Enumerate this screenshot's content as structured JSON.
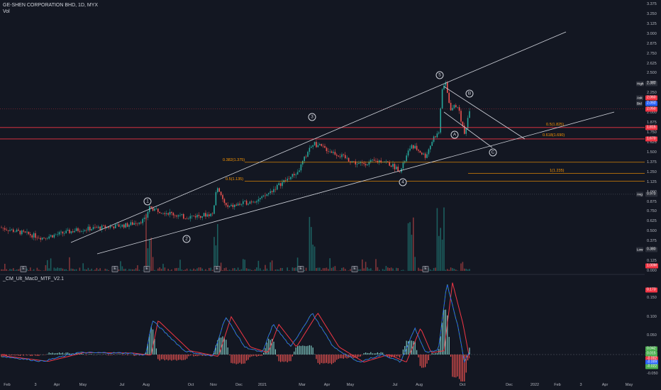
{
  "header": {
    "title": "GE-SHEN CORPORATION BHD, 1D, MYX",
    "volume_label": "Vol"
  },
  "indicator": {
    "title": "_CM_Ult_MacD_MTF_V2.1"
  },
  "price_axis": {
    "ticks": [
      "3.375",
      "3.250",
      "3.125",
      "3.000",
      "2.875",
      "2.750",
      "2.625",
      "2.500",
      "2.375",
      "2.250",
      "2.125",
      "2.000",
      "1.875",
      "1.750",
      "1.625",
      "1.500",
      "1.375",
      "1.250",
      "1.125",
      "1.000",
      "0.875",
      "0.750",
      "0.625",
      "0.500",
      "0.375",
      "0.250",
      "0.125",
      "0.000"
    ],
    "tags": [
      {
        "label": "High",
        "value": "2.380",
        "color": "#2a2e39"
      },
      {
        "label": "Ask",
        "value": "2.060",
        "color": "#f23645"
      },
      {
        "label": "Bid",
        "value": "2.050",
        "color": "#2962ff"
      },
      {
        "label": "",
        "value": "2.050",
        "color": "#f23645"
      },
      {
        "label": "",
        "value": "1.815",
        "color": "#f23645"
      },
      {
        "label": "",
        "value": "1.670",
        "color": "#f23645"
      },
      {
        "label": "Avg",
        "value": "0.970",
        "color": "#2a2e39"
      },
      {
        "label": "Low",
        "value": "0.380",
        "color": "#2a2e39"
      },
      {
        "label": "",
        "value": "1.00M",
        "color": "#f23645"
      }
    ]
  },
  "indicator_axis": {
    "ticks": [
      "0.150",
      "0.100",
      "0.050",
      "0.000",
      "-0.050"
    ],
    "tags": [
      {
        "value": "0.173",
        "color": "#f23645"
      },
      {
        "value": "0.042",
        "color": "#4caf50"
      },
      {
        "value": "0.015",
        "color": "#4caf50"
      },
      {
        "value": "-0.002",
        "color": "#f23645"
      },
      {
        "value": "-0.009",
        "color": "#2962ff"
      },
      {
        "value": "-0.022",
        "color": "#4caf50"
      }
    ]
  },
  "time_axis": {
    "labels": [
      "Feb",
      "3",
      "Apr",
      "May",
      "Jul",
      "Aug",
      "Oct",
      "Nov",
      "Dec",
      "2021",
      "Mar",
      "Apr",
      "May",
      "Jul",
      "Aug",
      "Oct",
      "Dec",
      "2022",
      "Feb",
      "3",
      "Apr",
      "May"
    ]
  },
  "fib_labels": [
    "0.382(1.375)",
    "0.5(1.135)",
    "0.5(1.825)",
    "0.618(1.690)",
    "1(1.235)"
  ],
  "wave_labels": [
    "1",
    "2",
    "3",
    "4",
    "5",
    "A",
    "B",
    "C"
  ],
  "event_badge": "E",
  "chart_data": {
    "type": "candlestick",
    "symbol": "GE-SHEN CORPORATION BHD",
    "interval": "1D",
    "exchange": "MYX",
    "price_range": [
      0.0,
      3.375
    ],
    "price_high": 2.38,
    "price_low": 0.38,
    "average": 0.97,
    "ask": 2.06,
    "bid": 2.05,
    "last": 2.05,
    "horizontal_levels": [
      1.815,
      1.67,
      1.375,
      1.235,
      1.135
    ],
    "fib_levels": [
      {
        "ratio": 0.382,
        "price": 1.375
      },
      {
        "ratio": 0.5,
        "price": 1.135
      },
      {
        "ratio": 0.5,
        "price": 1.825
      },
      {
        "ratio": 0.618,
        "price": 1.69
      },
      {
        "ratio": 1,
        "price": 1.235
      }
    ],
    "elliott_points": [
      {
        "label": "1",
        "price": 0.68
      },
      {
        "label": "2",
        "price": 0.6
      },
      {
        "label": "3",
        "price": 1.62
      },
      {
        "label": "4",
        "price": 1.24
      },
      {
        "label": "5",
        "price": 2.38
      },
      {
        "label": "A",
        "price": 1.72
      },
      {
        "label": "B",
        "price": 2.1
      },
      {
        "label": "C",
        "price": 1.4
      }
    ],
    "indicator_range": [
      -0.05,
      0.173
    ]
  }
}
